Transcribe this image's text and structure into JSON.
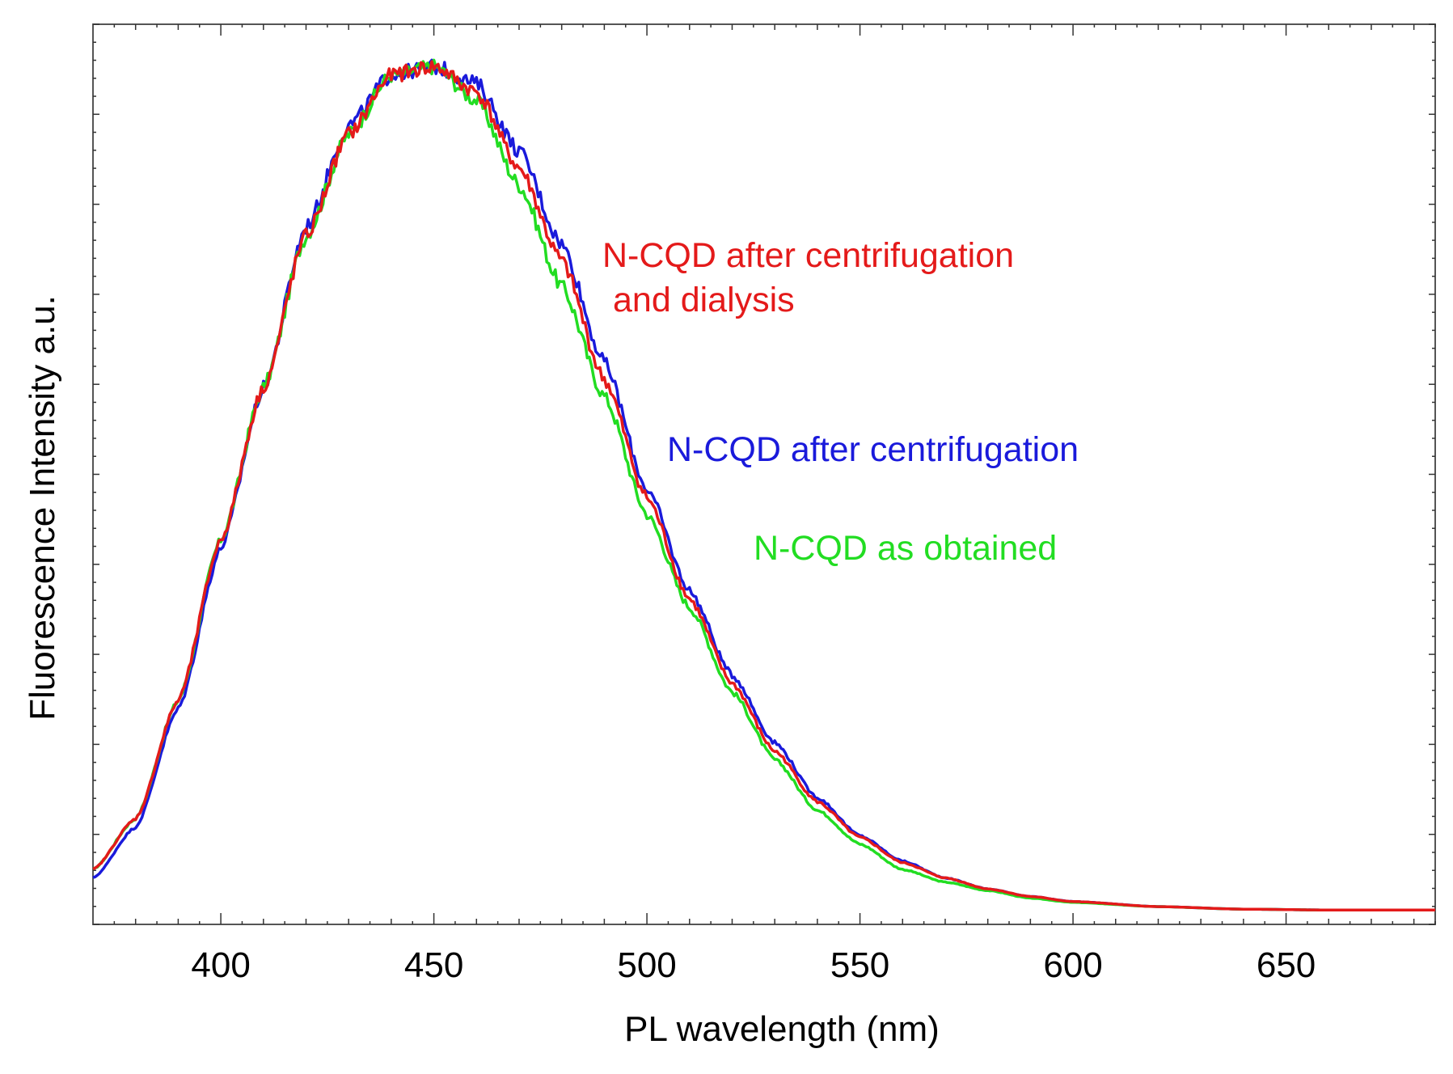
{
  "chart_data": {
    "type": "line",
    "title": "",
    "xlabel": "PL wavelength (nm)",
    "ylabel": "Fluorescence Intensity a.u.",
    "xlim": [
      370,
      685
    ],
    "ylim": [
      -0.015,
      1.05
    ],
    "x_ticks": [
      "400",
      "450",
      "500",
      "550",
      "600",
      "650"
    ],
    "y_ticks": [],
    "grid": false,
    "series": [
      {
        "name": "N-CQD as obtained",
        "color": "#22dd22",
        "peak_nm": 449,
        "x": [
          370,
          380,
          390,
          400,
          410,
          420,
          430,
          440,
          450,
          460,
          470,
          480,
          490,
          500,
          510,
          520,
          530,
          540,
          550,
          560,
          570,
          580,
          590,
          600,
          620,
          640,
          660,
          685
        ],
        "y": [
          0.05,
          0.11,
          0.25,
          0.44,
          0.62,
          0.8,
          0.92,
          0.99,
          1.0,
          0.96,
          0.86,
          0.74,
          0.61,
          0.47,
          0.36,
          0.26,
          0.18,
          0.12,
          0.08,
          0.05,
          0.035,
          0.025,
          0.016,
          0.011,
          0.006,
          0.003,
          0.002,
          0.002
        ]
      },
      {
        "name": "N-CQD after centrifugation",
        "color": "#1a1adb",
        "peak_nm": 450,
        "x": [
          370,
          380,
          390,
          400,
          410,
          420,
          430,
          440,
          450,
          460,
          470,
          480,
          490,
          500,
          510,
          520,
          530,
          540,
          550,
          560,
          570,
          580,
          590,
          600,
          620,
          640,
          660,
          685
        ],
        "y": [
          0.04,
          0.1,
          0.24,
          0.43,
          0.62,
          0.81,
          0.93,
          0.99,
          1.0,
          0.98,
          0.9,
          0.79,
          0.65,
          0.5,
          0.38,
          0.28,
          0.2,
          0.135,
          0.09,
          0.06,
          0.04,
          0.027,
          0.018,
          0.012,
          0.006,
          0.003,
          0.002,
          0.002
        ]
      },
      {
        "name": "N-CQD after centrifugation and dialysis",
        "color": "#e41a1a",
        "peak_nm": 450,
        "x": [
          370,
          380,
          390,
          400,
          410,
          420,
          430,
          440,
          450,
          460,
          470,
          480,
          490,
          500,
          510,
          520,
          530,
          540,
          550,
          560,
          570,
          580,
          590,
          600,
          620,
          640,
          660,
          685
        ],
        "y": [
          0.05,
          0.11,
          0.25,
          0.44,
          0.62,
          0.8,
          0.92,
          0.99,
          1.0,
          0.97,
          0.88,
          0.77,
          0.63,
          0.49,
          0.37,
          0.27,
          0.19,
          0.13,
          0.088,
          0.058,
          0.04,
          0.027,
          0.018,
          0.012,
          0.006,
          0.003,
          0.002,
          0.002
        ]
      }
    ],
    "annotations": [
      {
        "text": "N-CQD after centrifugation",
        "color": "#e41a1a",
        "line": 1
      },
      {
        "text": "and dialysis",
        "color": "#e41a1a",
        "line": 2
      },
      {
        "text": "N-CQD after centrifugation",
        "color": "#1a1adb",
        "line": 1
      },
      {
        "text": "N-CQD as obtained",
        "color": "#22dd22",
        "line": 1
      }
    ]
  }
}
